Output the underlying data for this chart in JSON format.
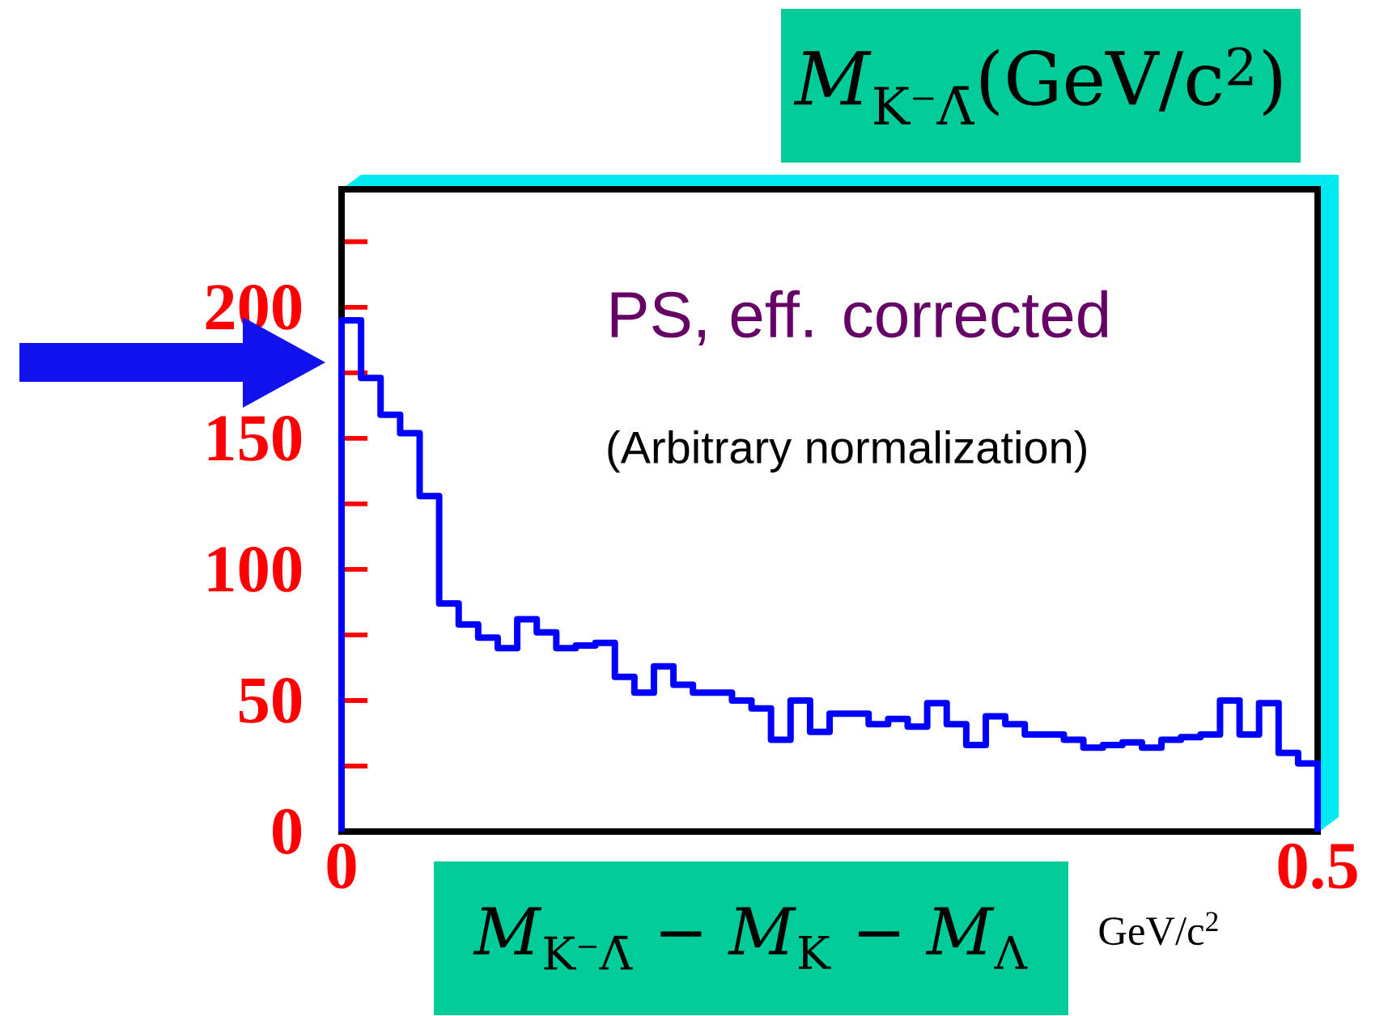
{
  "chart_data": {
    "type": "histogram",
    "xlabel": "*M*$_{K⁻Λ̄}$ − *M*$_{K}$ − *M*$_{Λ}$",
    "annotations": [
      "PS, eff. corrected",
      "(Arbitrary normalization)",
      "*M*$_{K⁻Λ̄}$(GeV/c$^{2}$)",
      "GeV/c$^{2}$"
    ],
    "bins": [
      0,
      0.01,
      0.02,
      0.03,
      0.04,
      0.05,
      0.06,
      0.07,
      0.08,
      0.09,
      0.1,
      0.11,
      0.12,
      0.13,
      0.14,
      0.15,
      0.16,
      0.17,
      0.18,
      0.19,
      0.2,
      0.21,
      0.22,
      0.23,
      0.24,
      0.25,
      0.26,
      0.27,
      0.28,
      0.29,
      0.3,
      0.31,
      0.32,
      0.33,
      0.34,
      0.35,
      0.36,
      0.37,
      0.38,
      0.39,
      0.4,
      0.41,
      0.42,
      0.43,
      0.44,
      0.45,
      0.46,
      0.47,
      0.48,
      0.49,
      0.5
    ],
    "values": [
      195,
      173,
      159,
      152,
      128,
      87,
      79,
      74,
      70,
      81,
      76,
      70,
      71,
      72,
      59,
      53,
      63,
      56,
      53,
      53,
      50,
      47,
      35,
      50,
      38,
      45,
      45,
      41,
      43,
      40,
      49,
      41,
      33,
      44,
      41,
      37,
      37,
      35,
      32,
      33,
      34,
      32,
      35,
      36,
      37,
      50,
      37,
      49,
      30,
      26
    ],
    "color": "#0000ff",
    "xlim": [
      0,
      0.5
    ],
    "ylim": [
      0,
      245
    ],
    "xticks": [
      0,
      0.5
    ],
    "yticks": [
      0,
      {
        "value": 25,
        "label": null
      },
      50,
      {
        "value": 75,
        "label": null
      },
      100,
      {
        "value": 125,
        "label": null
      },
      150,
      {
        "value": 175,
        "label": null
      },
      200,
      {
        "value": 225,
        "label": null
      }
    ]
  }
}
